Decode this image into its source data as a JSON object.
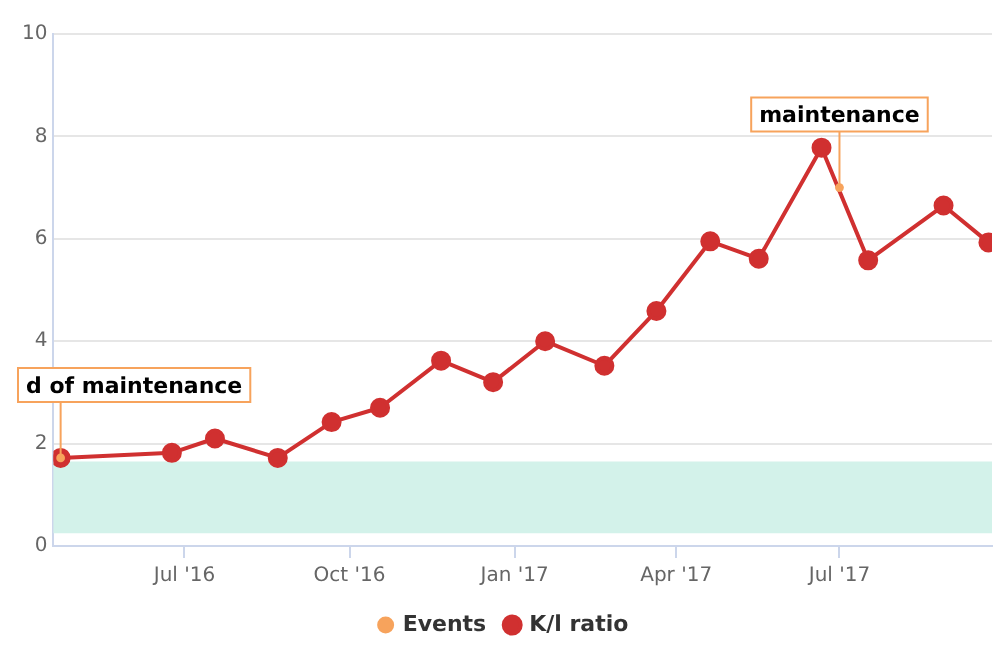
{
  "chart_data": {
    "type": "line",
    "x": [
      "2016-04-23",
      "2016-06-24",
      "2016-07-18",
      "2016-08-22",
      "2016-09-21",
      "2016-10-18",
      "2016-11-21",
      "2016-12-20",
      "2017-01-18",
      "2017-02-20",
      "2017-03-21",
      "2017-04-20",
      "2017-05-17",
      "2017-06-21",
      "2017-07-17",
      "2017-08-28",
      "2017-09-22"
    ],
    "series": [
      {
        "name": "K/l ratio",
        "color": "#d03030",
        "values": [
          1.72,
          1.82,
          2.1,
          1.72,
          2.42,
          2.7,
          3.62,
          3.2,
          4.0,
          3.52,
          4.59,
          5.95,
          5.61,
          7.78,
          5.58,
          6.65,
          5.93
        ]
      },
      {
        "name": "Events",
        "type": "scatter",
        "color": "#f7a35c",
        "x": [
          "2016-04-23",
          "2017-07-01"
        ],
        "values": [
          1.72,
          7.0
        ]
      }
    ],
    "annotations": [
      {
        "text": "d of maintenance",
        "x": "2016-04-23",
        "y": 1.72
      },
      {
        "text": "maintenance",
        "x": "2017-07-01",
        "y": 7.0
      }
    ],
    "bands": [
      {
        "axis": "y",
        "from": 0.25,
        "to": 1.65,
        "color": "#d3f2ea"
      }
    ],
    "xlim": [
      "2016-04-19",
      "2017-09-24"
    ],
    "xticks": [
      {
        "value": "2016-07-01",
        "label": "Jul '16"
      },
      {
        "value": "2016-10-01",
        "label": "Oct '16"
      },
      {
        "value": "2017-01-01",
        "label": "Jan '17"
      },
      {
        "value": "2017-04-01",
        "label": "Apr '17"
      },
      {
        "value": "2017-07-01",
        "label": "Jul '17"
      }
    ],
    "ylim": [
      0,
      10
    ],
    "yticks": [
      0,
      2,
      4,
      6,
      8,
      10
    ],
    "grid": "y",
    "legend": "bottom",
    "marker": "circle",
    "line_style": "solid"
  }
}
